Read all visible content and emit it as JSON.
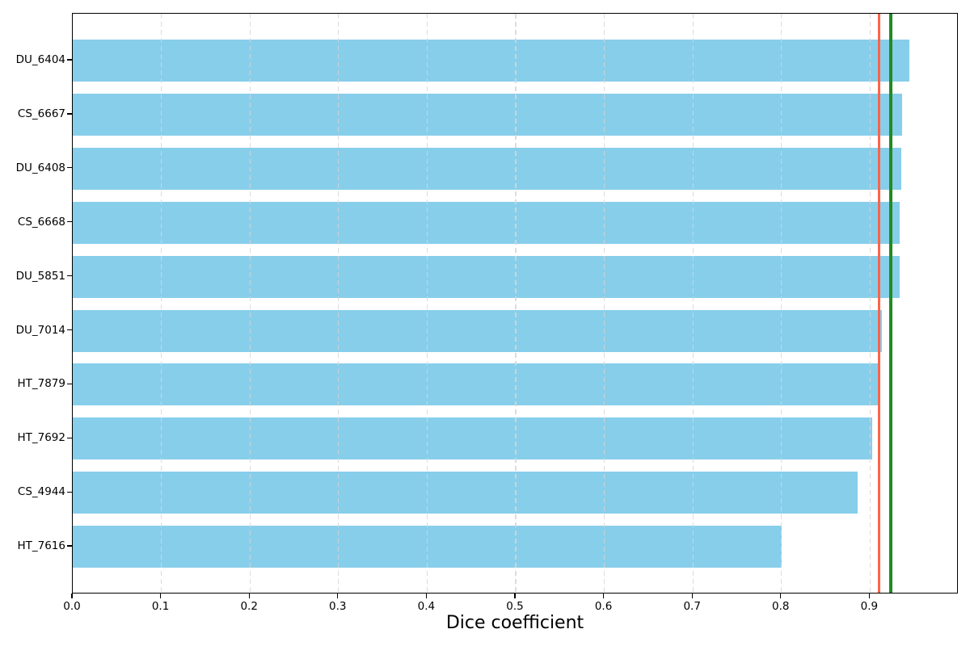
{
  "chart_data": {
    "type": "bar",
    "orientation": "horizontal",
    "title": "",
    "xlabel": "Dice coefficient",
    "ylabel": "",
    "categories": [
      "DU_6404",
      "CS_6667",
      "DU_6408",
      "CS_6668",
      "DU_5851",
      "DU_7014",
      "HT_7879",
      "HT_7692",
      "CS_4944",
      "HT_7616"
    ],
    "values": [
      0.944,
      0.936,
      0.935,
      0.933,
      0.933,
      0.913,
      0.911,
      0.902,
      0.886,
      0.8
    ],
    "bar_color": "#87CEEB",
    "xlim": [
      0.0,
      1.0
    ],
    "xticks": [
      0.0,
      0.1,
      0.2,
      0.3,
      0.4,
      0.5,
      0.6,
      0.7,
      0.8,
      0.9
    ],
    "grid": {
      "axis": "x",
      "style": "dashed",
      "color": "#d6d6d6"
    },
    "legend": "none",
    "reference_lines": [
      {
        "id": "red-line",
        "value": 0.91,
        "color": "#FF6347"
      },
      {
        "id": "green-line",
        "value": 0.9235,
        "color": "#228B22"
      }
    ]
  }
}
